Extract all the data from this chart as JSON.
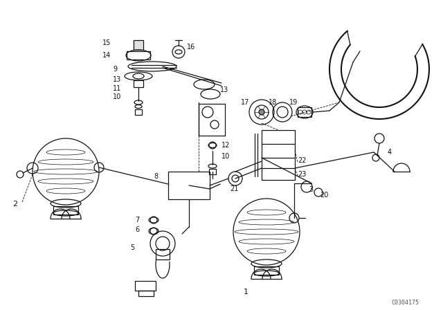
{
  "bg": "#ffffff",
  "lc": "#111111",
  "watermark": "C0304175",
  "figsize": [
    6.4,
    4.48
  ],
  "dpi": 100
}
